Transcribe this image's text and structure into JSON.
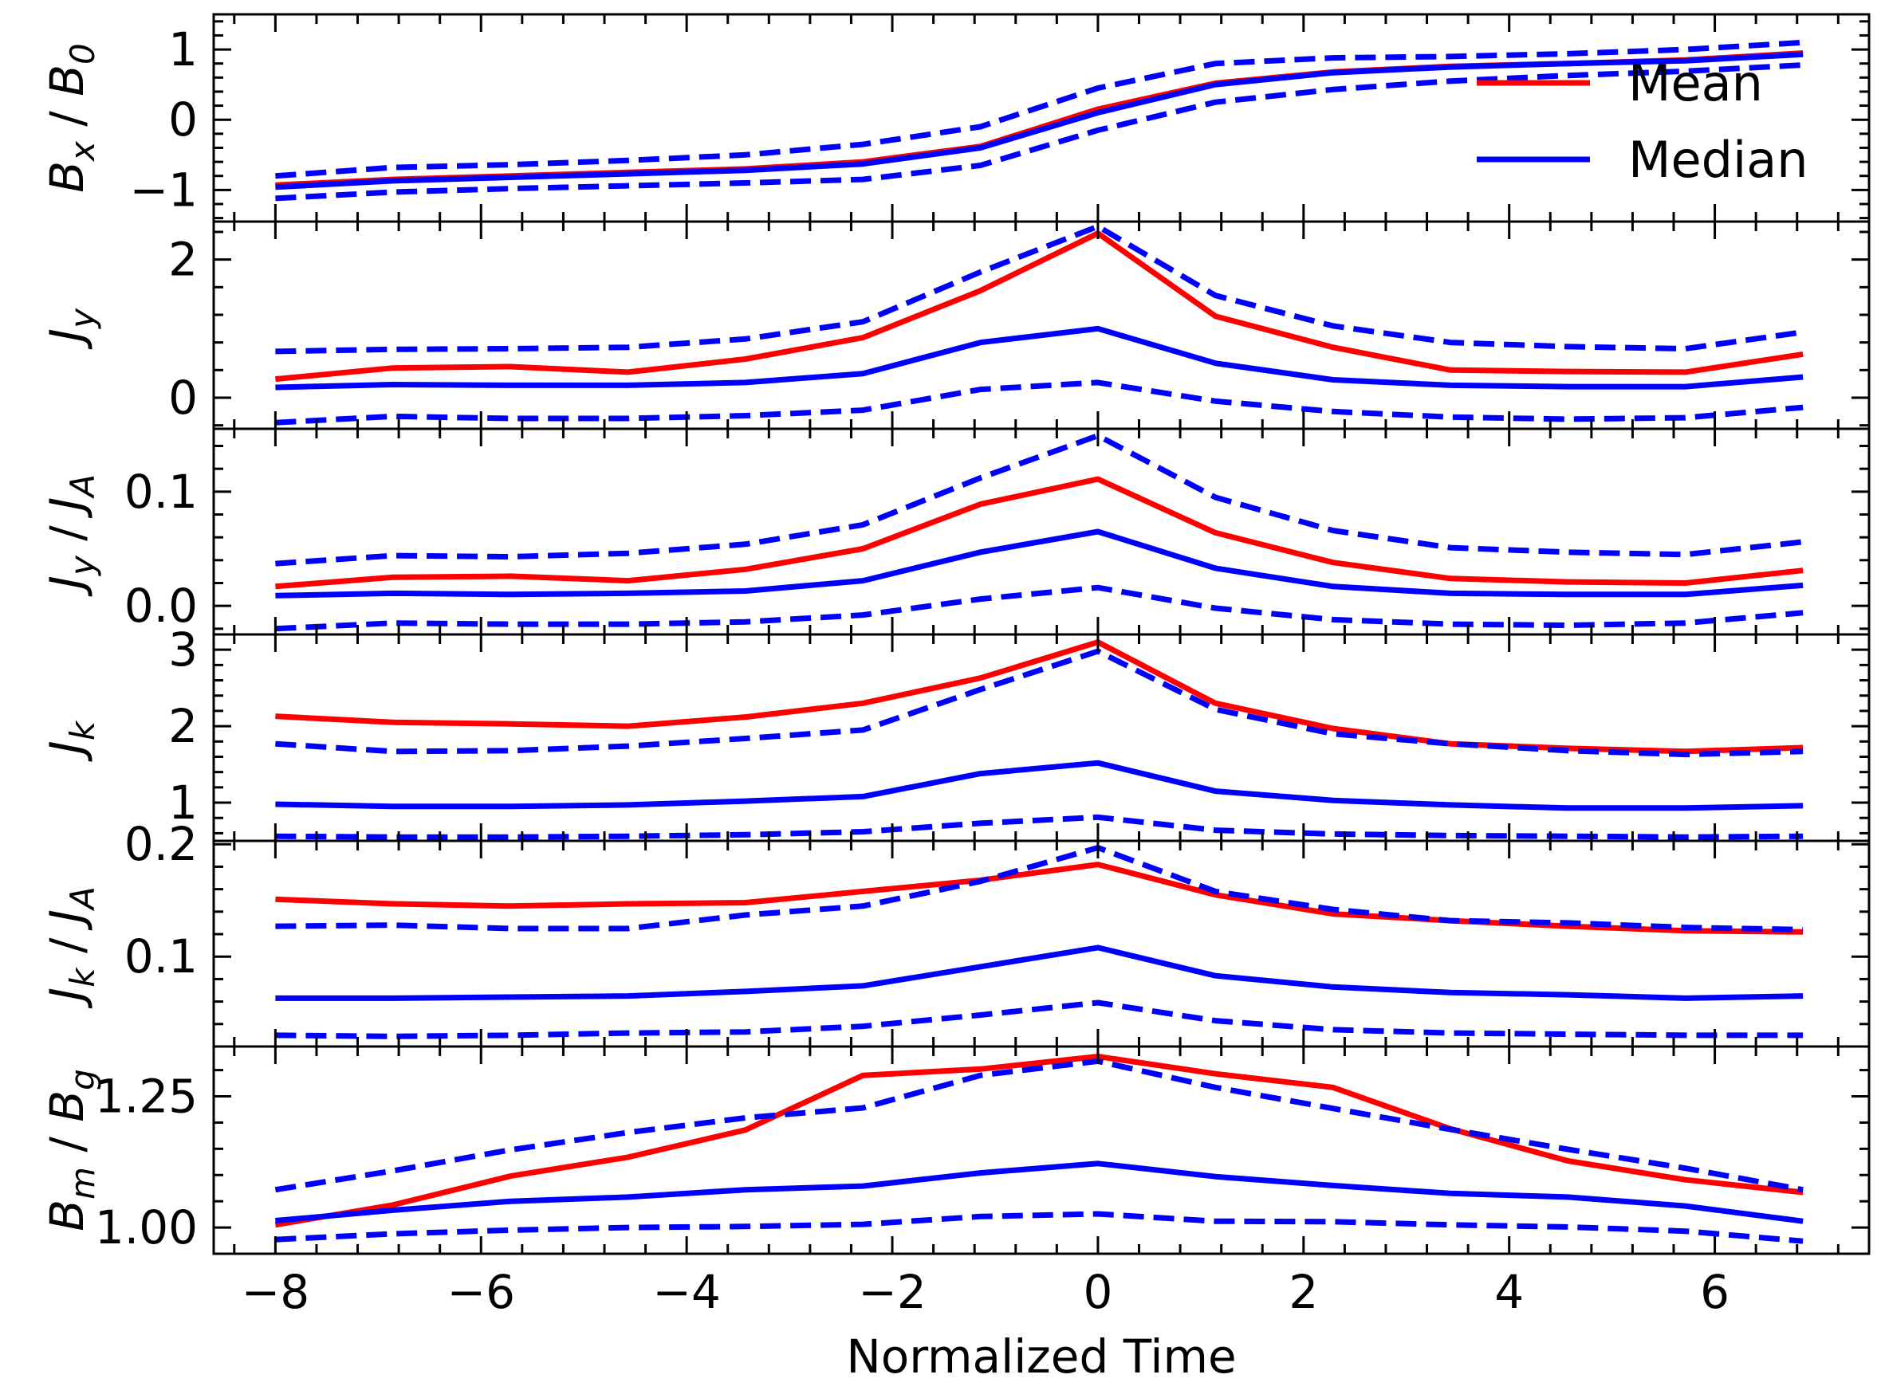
{
  "figure": {
    "xlabel": "Normalized Time",
    "xlim": [
      -8.6,
      7.5
    ],
    "xticks": [
      -8,
      -6,
      -4,
      -2,
      0,
      2,
      4,
      6
    ],
    "xtick_labels": [
      "−8",
      "−6",
      "−4",
      "−2",
      "0",
      "2",
      "4",
      "6"
    ],
    "legend": {
      "location": "upper right of top panel",
      "entries": [
        {
          "label": "Mean",
          "color": "#ff0000"
        },
        {
          "label": "Median",
          "color": "#0000ff"
        }
      ]
    },
    "colors": {
      "mean": "#ff0000",
      "median": "#0000ff"
    }
  },
  "chart_data": [
    {
      "type": "line",
      "ylabel_parts": {
        "main": "B",
        "sub": "x",
        "rest": " / B",
        "sub2": "0"
      },
      "ylim": [
        -1.45,
        1.5
      ],
      "yticks": [
        -1,
        0,
        1
      ],
      "ytick_labels": [
        "−1",
        "0",
        "1"
      ],
      "x": [
        -8,
        -6.857,
        -5.714,
        -4.571,
        -3.429,
        -2.286,
        -1.143,
        0,
        1.143,
        2.286,
        3.429,
        4.571,
        5.714,
        6.857
      ],
      "series": [
        {
          "name": "Mean",
          "color": "#ff0000",
          "style": "solid",
          "values": [
            -0.93,
            -0.85,
            -0.8,
            -0.75,
            -0.7,
            -0.6,
            -0.38,
            0.15,
            0.52,
            0.68,
            0.76,
            0.8,
            0.85,
            0.95
          ]
        },
        {
          "name": "Median",
          "color": "#0000ff",
          "style": "solid",
          "values": [
            -0.96,
            -0.87,
            -0.82,
            -0.77,
            -0.72,
            -0.63,
            -0.4,
            0.1,
            0.5,
            0.67,
            0.75,
            0.8,
            0.84,
            0.93
          ]
        },
        {
          "color": "#0000ff",
          "style": "dashed",
          "values": [
            -0.8,
            -0.68,
            -0.64,
            -0.58,
            -0.5,
            -0.35,
            -0.1,
            0.45,
            0.8,
            0.88,
            0.9,
            0.94,
            1.0,
            1.1
          ]
        },
        {
          "color": "#0000ff",
          "style": "dashed",
          "values": [
            -1.12,
            -1.03,
            -0.98,
            -0.94,
            -0.9,
            -0.85,
            -0.65,
            -0.15,
            0.25,
            0.43,
            0.55,
            0.63,
            0.69,
            0.78
          ]
        }
      ]
    },
    {
      "type": "line",
      "ylabel_parts": {
        "main": "J",
        "sub": "y"
      },
      "ylim": [
        -0.45,
        2.55
      ],
      "yticks": [
        0,
        2
      ],
      "ytick_labels": [
        "0",
        "2"
      ],
      "x": [
        -8,
        -6.857,
        -5.714,
        -4.571,
        -3.429,
        -2.286,
        -1.143,
        0,
        1.143,
        2.286,
        3.429,
        4.571,
        5.714,
        6.857
      ],
      "series": [
        {
          "name": "Mean",
          "color": "#ff0000",
          "style": "solid",
          "values": [
            0.27,
            0.43,
            0.45,
            0.37,
            0.56,
            0.87,
            1.55,
            2.38,
            1.18,
            0.73,
            0.4,
            0.38,
            0.37,
            0.63
          ]
        },
        {
          "name": "Median",
          "color": "#0000ff",
          "style": "solid",
          "values": [
            0.15,
            0.19,
            0.18,
            0.18,
            0.22,
            0.35,
            0.8,
            1.0,
            0.5,
            0.26,
            0.18,
            0.16,
            0.16,
            0.3
          ]
        },
        {
          "color": "#0000ff",
          "style": "dashed",
          "values": [
            0.67,
            0.7,
            0.71,
            0.73,
            0.85,
            1.1,
            1.82,
            2.48,
            1.48,
            1.04,
            0.8,
            0.74,
            0.71,
            0.95
          ]
        },
        {
          "color": "#0000ff",
          "style": "dashed",
          "values": [
            -0.36,
            -0.27,
            -0.3,
            -0.3,
            -0.26,
            -0.18,
            0.12,
            0.22,
            -0.05,
            -0.2,
            -0.28,
            -0.31,
            -0.29,
            -0.14
          ]
        }
      ]
    },
    {
      "type": "line",
      "ylabel_parts": {
        "main": "J",
        "sub": "y",
        "rest": " / J",
        "sub2": "A"
      },
      "ylim": [
        -0.025,
        0.155
      ],
      "yticks": [
        0.0,
        0.1
      ],
      "ytick_labels": [
        "0.0",
        "0.1"
      ],
      "x": [
        -8,
        -6.857,
        -5.714,
        -4.571,
        -3.429,
        -2.286,
        -1.143,
        0,
        1.143,
        2.286,
        3.429,
        4.571,
        5.714,
        6.857
      ],
      "series": [
        {
          "name": "Mean",
          "color": "#ff0000",
          "style": "solid",
          "values": [
            0.017,
            0.025,
            0.026,
            0.022,
            0.032,
            0.05,
            0.089,
            0.111,
            0.064,
            0.038,
            0.024,
            0.021,
            0.02,
            0.031
          ]
        },
        {
          "name": "Median",
          "color": "#0000ff",
          "style": "solid",
          "values": [
            0.009,
            0.011,
            0.01,
            0.011,
            0.013,
            0.022,
            0.047,
            0.065,
            0.033,
            0.017,
            0.011,
            0.01,
            0.01,
            0.018
          ]
        },
        {
          "color": "#0000ff",
          "style": "dashed",
          "values": [
            0.037,
            0.044,
            0.043,
            0.046,
            0.054,
            0.071,
            0.112,
            0.149,
            0.095,
            0.066,
            0.051,
            0.047,
            0.045,
            0.056
          ]
        },
        {
          "color": "#0000ff",
          "style": "dashed",
          "values": [
            -0.02,
            -0.015,
            -0.016,
            -0.016,
            -0.014,
            -0.008,
            0.006,
            0.016,
            -0.002,
            -0.012,
            -0.016,
            -0.017,
            -0.015,
            -0.006
          ]
        }
      ]
    },
    {
      "type": "line",
      "ylabel_parts": {
        "main": "J",
        "sub": "k"
      },
      "ylim": [
        0.5,
        3.2
      ],
      "yticks": [
        1,
        2,
        3
      ],
      "ytick_labels": [
        "1",
        "2",
        "3"
      ],
      "x": [
        -8,
        -6.857,
        -5.714,
        -4.571,
        -3.429,
        -2.286,
        -1.143,
        0,
        1.143,
        2.286,
        3.429,
        4.571,
        5.714,
        6.857
      ],
      "series": [
        {
          "name": "Mean",
          "color": "#ff0000",
          "style": "solid",
          "values": [
            2.13,
            2.05,
            2.03,
            2.0,
            2.12,
            2.3,
            2.63,
            3.1,
            2.3,
            1.97,
            1.77,
            1.71,
            1.67,
            1.72
          ]
        },
        {
          "name": "Median",
          "color": "#0000ff",
          "style": "solid",
          "values": [
            0.98,
            0.95,
            0.95,
            0.97,
            1.02,
            1.08,
            1.38,
            1.52,
            1.15,
            1.03,
            0.97,
            0.93,
            0.93,
            0.96
          ]
        },
        {
          "color": "#0000ff",
          "style": "dashed",
          "values": [
            1.77,
            1.67,
            1.68,
            1.74,
            1.84,
            1.95,
            2.48,
            2.98,
            2.22,
            1.9,
            1.77,
            1.68,
            1.63,
            1.67
          ]
        },
        {
          "color": "#0000ff",
          "style": "dashed",
          "values": [
            0.56,
            0.55,
            0.55,
            0.56,
            0.58,
            0.62,
            0.73,
            0.81,
            0.64,
            0.59,
            0.57,
            0.56,
            0.55,
            0.56
          ]
        }
      ]
    },
    {
      "type": "line",
      "ylabel_parts": {
        "main": "J",
        "sub": "k",
        "rest": " / J",
        "sub2": "A"
      },
      "ylim": [
        0.02,
        0.203
      ],
      "yticks": [
        0.1,
        0.2
      ],
      "ytick_labels": [
        "0.1",
        "0.2"
      ],
      "x": [
        -8,
        -6.857,
        -5.714,
        -4.571,
        -3.429,
        -2.286,
        -1.143,
        0,
        1.143,
        2.286,
        3.429,
        4.571,
        5.714,
        6.857
      ],
      "series": [
        {
          "name": "Mean",
          "color": "#ff0000",
          "style": "solid",
          "values": [
            0.151,
            0.147,
            0.145,
            0.147,
            0.148,
            0.158,
            0.168,
            0.182,
            0.155,
            0.138,
            0.132,
            0.127,
            0.123,
            0.122
          ]
        },
        {
          "name": "Median",
          "color": "#0000ff",
          "style": "solid",
          "values": [
            0.063,
            0.063,
            0.064,
            0.065,
            0.069,
            0.074,
            0.091,
            0.108,
            0.083,
            0.073,
            0.068,
            0.066,
            0.063,
            0.065
          ]
        },
        {
          "color": "#0000ff",
          "style": "dashed",
          "values": [
            0.127,
            0.128,
            0.125,
            0.125,
            0.137,
            0.145,
            0.167,
            0.197,
            0.158,
            0.142,
            0.132,
            0.13,
            0.126,
            0.124
          ]
        },
        {
          "color": "#0000ff",
          "style": "dashed",
          "values": [
            0.03,
            0.029,
            0.03,
            0.032,
            0.033,
            0.038,
            0.048,
            0.059,
            0.043,
            0.035,
            0.032,
            0.031,
            0.03,
            0.03
          ]
        }
      ]
    },
    {
      "type": "line",
      "ylabel_parts": {
        "main": "B",
        "sub": "m",
        "rest": " / B",
        "sub2": "g"
      },
      "ylim": [
        0.95,
        1.345
      ],
      "yticks": [
        1.0,
        1.25
      ],
      "ytick_labels": [
        "1.00",
        "1.25"
      ],
      "x": [
        -8,
        -6.857,
        -5.714,
        -4.571,
        -3.429,
        -2.286,
        -1.143,
        0,
        1.143,
        2.286,
        3.429,
        4.571,
        5.714,
        6.857
      ],
      "series": [
        {
          "name": "Mean",
          "color": "#ff0000",
          "style": "solid",
          "values": [
            1.005,
            1.043,
            1.098,
            1.134,
            1.186,
            1.29,
            1.302,
            1.326,
            1.293,
            1.267,
            1.188,
            1.127,
            1.091,
            1.067
          ]
        },
        {
          "name": "Median",
          "color": "#0000ff",
          "style": "solid",
          "values": [
            1.013,
            1.033,
            1.05,
            1.058,
            1.072,
            1.079,
            1.104,
            1.122,
            1.097,
            1.08,
            1.065,
            1.058,
            1.041,
            1.012
          ]
        },
        {
          "color": "#0000ff",
          "style": "dashed",
          "values": [
            1.072,
            1.108,
            1.148,
            1.181,
            1.209,
            1.228,
            1.29,
            1.317,
            1.267,
            1.227,
            1.187,
            1.149,
            1.113,
            1.072
          ]
        },
        {
          "color": "#0000ff",
          "style": "dashed",
          "values": [
            0.977,
            0.988,
            0.995,
            1.0,
            1.002,
            1.006,
            1.021,
            1.026,
            1.012,
            1.011,
            1.005,
            1.001,
            0.993,
            0.974
          ]
        }
      ]
    }
  ]
}
